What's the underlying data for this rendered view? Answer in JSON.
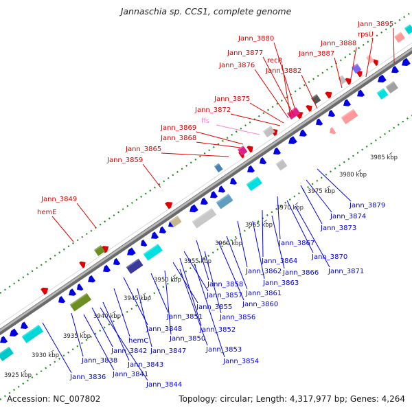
{
  "title": "Jannaschia sp. CCS1, complete genome",
  "footer": {
    "accession": "Accession: NC_007802",
    "topology": "Topology: circular; Length: 4,317,977 bp; Genes: 4,264"
  },
  "colors": {
    "label_top": "#e00000",
    "label_bottom": "#0000e0",
    "label_rna": "#ff7fd0",
    "backbone": "#888888",
    "dots": "#1a8a1a",
    "forward_gene": "#e00000",
    "reverse_gene": "#0000e0"
  },
  "ticks": [
    "3925 kbp",
    "3930 kbp",
    "3935 kbp",
    "3940 kbp",
    "3945 kbp",
    "3950 kbp",
    "3955 kbp",
    "3960 kbp",
    "3965 kbp",
    "3970 kbp",
    "3975 kbp",
    "3980 kbp",
    "3985 kbp"
  ],
  "top_labels": [
    "Jann_3895",
    "rpsU",
    "Jann_3888",
    "Jann_3887",
    "Jann_3880",
    "Jann_3877",
    "recR",
    "Jann_3876",
    "Jann_3882",
    "Jann_3875",
    "Jann_3872",
    "ffs",
    "Jann_3869",
    "Jann_3868",
    "Jann_3865",
    "Jann_3859",
    "Jann_3849",
    "hemE"
  ],
  "bottom_labels": [
    "Jann_3879",
    "Jann_3874",
    "Jann_3873",
    "Jann_3867",
    "Jann_3870",
    "Jann_3864",
    "Jann_3871",
    "Jann_3862",
    "Jann_3866",
    "Jann_3863",
    "Jann_3858",
    "Jann_3861",
    "Jann_3857",
    "Jann_3860",
    "Jann_3855",
    "Jann_3856",
    "Jann_3851",
    "Jann_3852",
    "Jann_3848",
    "Jann_3850",
    "hemC",
    "Jann_3847",
    "Jann_3853",
    "Jann_3842",
    "Jann_3838",
    "Jann_3843",
    "Jann_3854",
    "Jann_3841",
    "Jann_3836",
    "Jann_3844"
  ]
}
